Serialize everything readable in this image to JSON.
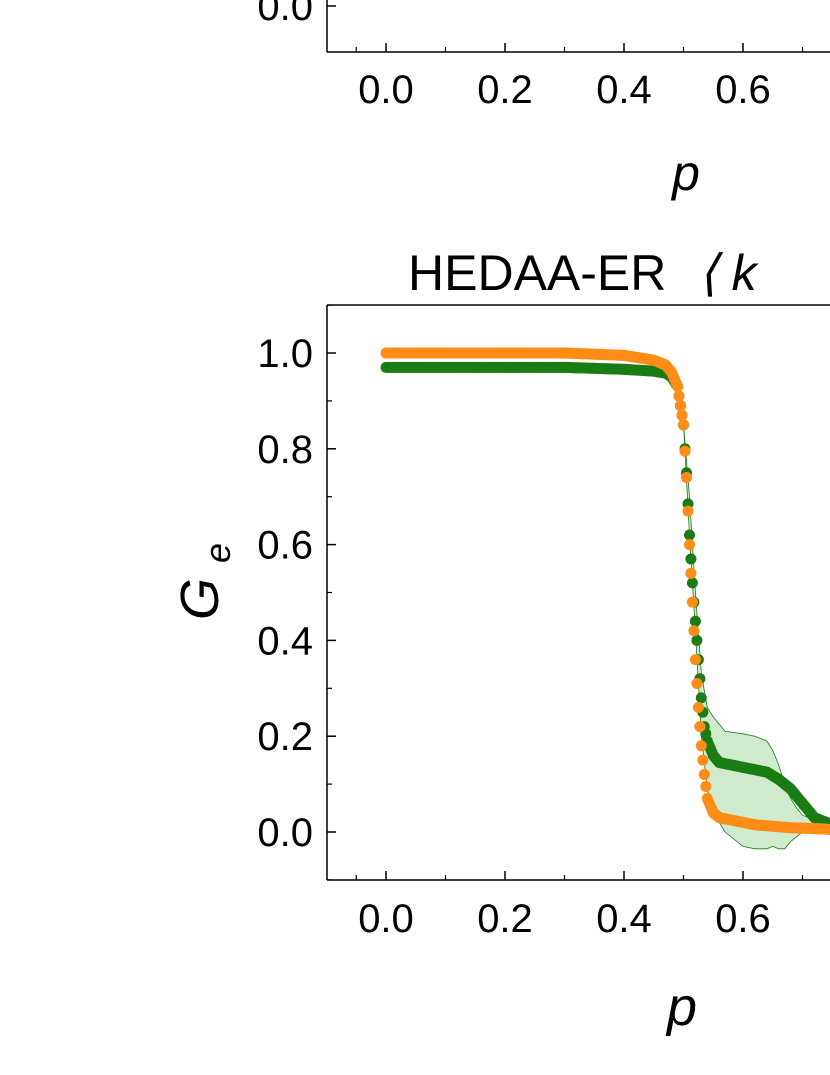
{
  "chart_data": [
    {
      "type": "line",
      "title": "",
      "xlabel": "p",
      "ylabel": "",
      "xlim": [
        -0.1,
        0.75
      ],
      "x_ticks": [
        "0.0",
        "0.2",
        "0.4",
        "0.6"
      ],
      "y_ticks": [
        "0.0"
      ],
      "series": []
    },
    {
      "type": "scatter",
      "title_prefix": "HEDAA-ER",
      "title_symbol": "⟨ k",
      "xlabel": "p",
      "ylabel_main": "G",
      "ylabel_sub": "e",
      "xlim": [
        -0.1,
        0.75
      ],
      "ylim": [
        -0.1,
        1.1
      ],
      "x_ticks": [
        "0.0",
        "0.2",
        "0.4",
        "0.6"
      ],
      "y_ticks": [
        "0.0",
        "0.2",
        "0.4",
        "0.6",
        "0.8",
        "1.0"
      ],
      "colors": {
        "green": "#1a7d14",
        "orange": "#ff8c14",
        "band": "#a8d8a4"
      },
      "series": [
        {
          "color": "green",
          "x": [
            0.0,
            0.1,
            0.2,
            0.3,
            0.4,
            0.45,
            0.47,
            0.48,
            0.49,
            0.5,
            0.505,
            0.51,
            0.515,
            0.52,
            0.525,
            0.53,
            0.535,
            0.54,
            0.55,
            0.56,
            0.58,
            0.6,
            0.62,
            0.64,
            0.66,
            0.68,
            0.7,
            0.72,
            0.74,
            0.75
          ],
          "y": [
            0.97,
            0.97,
            0.97,
            0.97,
            0.966,
            0.962,
            0.958,
            0.95,
            0.93,
            0.85,
            0.75,
            0.62,
            0.52,
            0.44,
            0.36,
            0.28,
            0.22,
            0.19,
            0.16,
            0.145,
            0.14,
            0.135,
            0.13,
            0.125,
            0.11,
            0.09,
            0.06,
            0.03,
            0.02,
            0.015
          ]
        },
        {
          "color": "orange",
          "x": [
            0.0,
            0.1,
            0.2,
            0.3,
            0.4,
            0.45,
            0.47,
            0.48,
            0.49,
            0.5,
            0.505,
            0.51,
            0.515,
            0.52,
            0.525,
            0.53,
            0.535,
            0.54,
            0.55,
            0.56,
            0.58,
            0.6,
            0.62,
            0.64,
            0.66,
            0.68,
            0.7,
            0.72,
            0.74,
            0.75
          ],
          "y": [
            1.0,
            1.0,
            1.0,
            1.0,
            0.995,
            0.985,
            0.975,
            0.96,
            0.93,
            0.85,
            0.74,
            0.6,
            0.48,
            0.36,
            0.26,
            0.18,
            0.12,
            0.07,
            0.04,
            0.03,
            0.025,
            0.02,
            0.015,
            0.013,
            0.011,
            0.009,
            0.008,
            0.007,
            0.006,
            0.005
          ]
        }
      ],
      "band": {
        "x": [
          0.5,
          0.51,
          0.52,
          0.53,
          0.54,
          0.55,
          0.57,
          0.6,
          0.62,
          0.64,
          0.65,
          0.66,
          0.67,
          0.68,
          0.69,
          0.7,
          0.72,
          0.74,
          0.75
        ],
        "upper": [
          0.85,
          0.7,
          0.5,
          0.33,
          0.26,
          0.24,
          0.21,
          0.205,
          0.2,
          0.19,
          0.17,
          0.14,
          0.1,
          0.07,
          0.05,
          0.035,
          0.025,
          0.02,
          0.018
        ],
        "lower": [
          0.85,
          0.62,
          0.42,
          0.2,
          0.09,
          0.04,
          0.0,
          -0.03,
          -0.035,
          -0.035,
          -0.03,
          -0.035,
          -0.035,
          -0.02,
          -0.01,
          0.0,
          0.005,
          0.008,
          0.01
        ]
      }
    }
  ]
}
